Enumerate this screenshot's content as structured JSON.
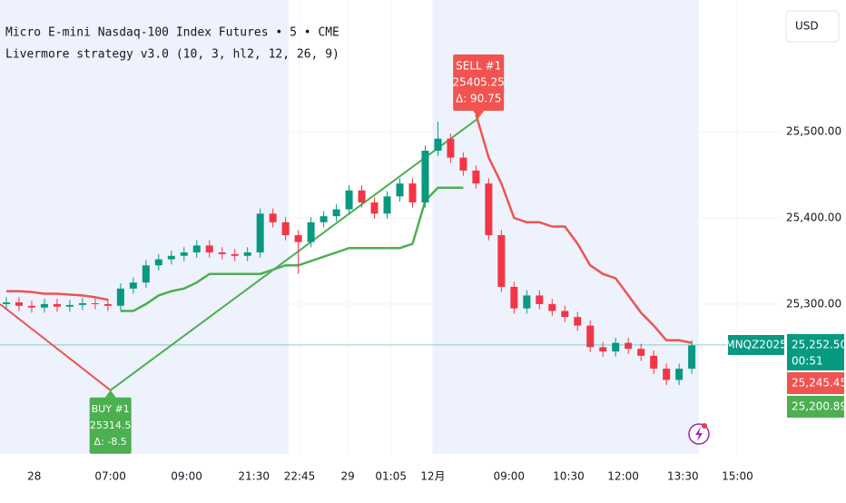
{
  "chart_data": {
    "type": "candlestick",
    "title": "Micro E-mini Nasdaq-100 Index Futures • 5 • CME",
    "subtitle": "Livermore strategy v3.0 (10, 3, hl2, 12, 26, 9)",
    "currency": "USD",
    "up_color": "#089981",
    "down_color": "#f23645",
    "open": [
      25300,
      25302,
      25298,
      25296,
      25300,
      25297,
      25299,
      25301,
      25300,
      25298,
      25318,
      25325,
      25345,
      25352,
      25356,
      25360,
      25368,
      25360,
      25358,
      25356,
      25360,
      25405,
      25395,
      25380,
      25372,
      25395,
      25402,
      25410,
      25432,
      25418,
      25405,
      25425,
      25440,
      25418,
      25478,
      25492,
      25470,
      25455,
      25440,
      25380,
      25320,
      25295,
      25310,
      25300,
      25292,
      25285,
      25275,
      25250,
      25245,
      25255,
      25248,
      25240,
      25225,
      25212,
      25225
    ],
    "high": [
      25308,
      25308,
      25304,
      25306,
      25306,
      25305,
      25307,
      25307,
      25306,
      25324,
      25331,
      25351,
      25358,
      25362,
      25366,
      25374,
      25374,
      25366,
      25364,
      25366,
      25411,
      25411,
      25401,
      25386,
      25401,
      25408,
      25416,
      25438,
      25438,
      25424,
      25431,
      25446,
      25446,
      25484,
      25512,
      25498,
      25476,
      25461,
      25446,
      25386,
      25326,
      25316,
      25316,
      25306,
      25298,
      25291,
      25281,
      25256,
      25261,
      25261,
      25254,
      25246,
      25231,
      25231,
      25258
    ],
    "low": [
      25294,
      25292,
      25290,
      25290,
      25291,
      25291,
      25293,
      25294,
      25292,
      25292,
      25312,
      25319,
      25339,
      25346,
      25350,
      25354,
      25354,
      25352,
      25350,
      25350,
      25354,
      25389,
      25374,
      25335,
      25366,
      25389,
      25396,
      25404,
      25412,
      25399,
      25399,
      25419,
      25412,
      25412,
      25472,
      25464,
      25449,
      25434,
      25374,
      25314,
      25289,
      25289,
      25294,
      25286,
      25279,
      25269,
      25244,
      25239,
      25239,
      25242,
      25234,
      25219,
      25206,
      25206,
      25219
    ],
    "close": [
      25302,
      25298,
      25296,
      25300,
      25297,
      25299,
      25301,
      25300,
      25298,
      25318,
      25325,
      25345,
      25352,
      25356,
      25360,
      25368,
      25360,
      25358,
      25356,
      25360,
      25405,
      25395,
      25380,
      25372,
      25395,
      25402,
      25410,
      25432,
      25418,
      25405,
      25425,
      25440,
      25418,
      25478,
      25492,
      25470,
      25455,
      25440,
      25380,
      25320,
      25295,
      25310,
      25300,
      25292,
      25285,
      25275,
      25250,
      25245,
      25255,
      25248,
      25240,
      25225,
      25212,
      25225,
      25252
    ],
    "long_stop": {
      "color": "#4caf50",
      "values": [
        null,
        null,
        null,
        null,
        null,
        null,
        null,
        null,
        null,
        25292,
        25292,
        25300,
        25310,
        25315,
        25318,
        25325,
        25335,
        25335,
        25335,
        25335,
        25335,
        25340,
        25345,
        25345,
        25350,
        25355,
        25360,
        25365,
        25365,
        25365,
        25365,
        25365,
        25370,
        25420,
        25435,
        25435,
        25435,
        null,
        null,
        null,
        null,
        null,
        null,
        null,
        null,
        null,
        null,
        null,
        null,
        null,
        null,
        null,
        null,
        null,
        null
      ]
    },
    "short_stop": {
      "color": "#ef5350",
      "values": [
        25315,
        25315,
        25314,
        25312,
        25312,
        25311,
        25310,
        25308,
        25305,
        null,
        null,
        null,
        null,
        null,
        null,
        null,
        null,
        null,
        null,
        null,
        null,
        null,
        null,
        null,
        null,
        null,
        null,
        null,
        null,
        null,
        null,
        null,
        null,
        null,
        null,
        null,
        null,
        25520,
        25470,
        25440,
        25400,
        25395,
        25395,
        25390,
        25390,
        25370,
        25345,
        25335,
        25330,
        25310,
        25290,
        25275,
        25258,
        25258,
        25255
      ]
    },
    "trade_lines": [
      {
        "color": "#ef5350",
        "x": [
          -0.5,
          8.2
        ],
        "y": [
          25300,
          25200
        ]
      },
      {
        "color": "#4caf50",
        "x": [
          8.2,
          37.2
        ],
        "y": [
          25200,
          25516
        ]
      }
    ],
    "trades": [
      {
        "side": "buy",
        "color": "#4caf50",
        "x": 8.2,
        "y": 25200,
        "lines": [
          "BUY #1",
          "25314.5",
          "Δ: -8.5"
        ]
      },
      {
        "side": "sell",
        "color": "#f05350",
        "x": 37.2,
        "y": 25516,
        "lines": [
          "SELL #1",
          "25405.25",
          "Δ: 90.75"
        ]
      }
    ],
    "xlim": [
      -0.5,
      61
    ],
    "xticks": [
      {
        "value": 2.2,
        "label": "28"
      },
      {
        "value": 8.2,
        "label": "07:00"
      },
      {
        "value": 14.2,
        "label": "09:00"
      },
      {
        "value": 19.5,
        "label": "21:30"
      },
      {
        "value": 23.1,
        "label": "22:45"
      },
      {
        "value": 26.9,
        "label": "29"
      },
      {
        "value": 30.3,
        "label": "01:05"
      },
      {
        "value": 33.6,
        "label": "12月"
      },
      {
        "value": 39.6,
        "label": "09:00"
      },
      {
        "value": 44.3,
        "label": "10:30"
      },
      {
        "value": 48.6,
        "label": "12:00"
      },
      {
        "value": 53.3,
        "label": "13:30"
      },
      {
        "value": 57.6,
        "label": "15:00"
      }
    ],
    "ylim": [
      25126,
      25653
    ],
    "yticks": [
      {
        "value": 25300,
        "label": "25,300.00"
      },
      {
        "value": 25400,
        "label": "25,400.00"
      },
      {
        "value": 25500,
        "label": "25,500.00"
      }
    ],
    "grid": true,
    "symbol_tag": "MNQZ2025",
    "price_tags": [
      {
        "value": 25252.5,
        "label": "25,252.50",
        "sub": "00:51",
        "color": "#089981"
      },
      {
        "value": 25245.45,
        "label": "25,245.45",
        "color": "#f05350"
      },
      {
        "value": 25200.89,
        "label": "25,200.89",
        "color": "#4caf50"
      }
    ]
  }
}
